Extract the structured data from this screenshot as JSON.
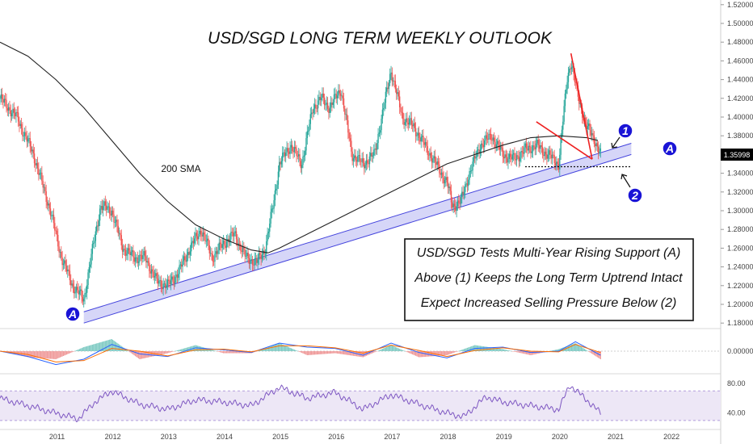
{
  "chart_data": {
    "type": "line",
    "title": "USD/SGD LONG TERM WEEKLY OUTLOOK",
    "price_label": "1.35998",
    "sma_label": "200 SMA",
    "annotation_lines": [
      "USD/SGD Tests Multi-Year Rising Support (A)",
      "Above (1) Keeps the Long Term Uptrend Intact",
      "Expect Increased Selling Pressure Below (2)"
    ],
    "markers": [
      "A",
      "A",
      "1",
      "2"
    ],
    "x_tick_labels": [
      "2011",
      "2012",
      "2013",
      "2014",
      "2015",
      "2016",
      "2017",
      "2018",
      "2019",
      "2020",
      "2021",
      "2022"
    ],
    "price_axis": {
      "ylim": [
        1.175,
        1.525
      ],
      "ticks": [
        "1.52000",
        "1.50000",
        "1.48000",
        "1.46000",
        "1.44000",
        "1.42000",
        "1.40000",
        "1.38000",
        "1.36000",
        "1.34000",
        "1.32000",
        "1.30000",
        "1.28000",
        "1.26000",
        "1.24000",
        "1.22000",
        "1.20000",
        "1.18000"
      ]
    },
    "macd_axis": {
      "ticks": [
        "0.00000"
      ]
    },
    "rsi_axis": {
      "ticks": [
        "80.00",
        "40.00"
      ],
      "band": [
        30,
        70
      ]
    },
    "price_series": {
      "name": "",
      "x": [
        2010.0,
        2010.3,
        2010.6,
        2010.9,
        2011.1,
        2011.3,
        2011.5,
        2011.6,
        2011.8,
        2012.0,
        2012.2,
        2012.4,
        2012.6,
        2012.8,
        2013.0,
        2013.2,
        2013.4,
        2013.6,
        2013.8,
        2014.0,
        2014.2,
        2014.4,
        2014.6,
        2014.75,
        2014.9,
        2015.0,
        2015.2,
        2015.4,
        2015.6,
        2015.75,
        2015.9,
        2016.1,
        2016.3,
        2016.5,
        2016.7,
        2016.9,
        2017.0,
        2017.2,
        2017.4,
        2017.6,
        2017.8,
        2018.0,
        2018.1,
        2018.25,
        2018.4,
        2018.6,
        2018.8,
        2019.0,
        2019.2,
        2019.4,
        2019.6,
        2019.8,
        2020.0,
        2020.15,
        2020.22,
        2020.35,
        2020.5,
        2020.65,
        2020.75
      ],
      "y": [
        1.42,
        1.4,
        1.36,
        1.3,
        1.25,
        1.22,
        1.205,
        1.24,
        1.305,
        1.3,
        1.26,
        1.25,
        1.25,
        1.225,
        1.22,
        1.235,
        1.26,
        1.28,
        1.25,
        1.265,
        1.275,
        1.25,
        1.245,
        1.26,
        1.31,
        1.35,
        1.37,
        1.35,
        1.41,
        1.42,
        1.41,
        1.43,
        1.36,
        1.35,
        1.36,
        1.42,
        1.45,
        1.4,
        1.39,
        1.37,
        1.35,
        1.33,
        1.305,
        1.31,
        1.34,
        1.37,
        1.38,
        1.36,
        1.355,
        1.365,
        1.37,
        1.36,
        1.35,
        1.44,
        1.46,
        1.42,
        1.39,
        1.375,
        1.36
      ]
    },
    "sma_series": {
      "name": "200 SMA",
      "x": [
        2010.0,
        2010.5,
        2011.0,
        2011.5,
        2012.0,
        2012.5,
        2013.0,
        2013.5,
        2014.0,
        2014.5,
        2014.8,
        2015.0,
        2015.5,
        2016.0,
        2016.5,
        2017.0,
        2017.5,
        2018.0,
        2018.5,
        2019.0,
        2019.5,
        2020.0,
        2020.5,
        2020.7
      ],
      "y": [
        1.48,
        1.465,
        1.44,
        1.41,
        1.375,
        1.34,
        1.31,
        1.285,
        1.27,
        1.258,
        1.255,
        1.26,
        1.275,
        1.29,
        1.305,
        1.32,
        1.335,
        1.35,
        1.36,
        1.37,
        1.378,
        1.38,
        1.378,
        1.375
      ]
    },
    "support_channel": {
      "start": [
        2011.5,
        1.18
      ],
      "end": [
        2021.3,
        1.36
      ],
      "width": 0.012
    },
    "downtrend_lines": [
      {
        "from": [
          2020.22,
          1.468
        ],
        "to": [
          2020.6,
          1.355
        ]
      },
      {
        "from": [
          2019.6,
          1.395
        ],
        "to": [
          2020.6,
          1.355
        ]
      }
    ],
    "support_level_2": {
      "y": 1.347,
      "from": 2019.4,
      "to": 2021.3
    },
    "macd": {
      "x": [
        2010.0,
        2010.5,
        2011.0,
        2011.5,
        2012.0,
        2012.5,
        2013.0,
        2013.5,
        2014.0,
        2014.5,
        2015.0,
        2015.5,
        2016.0,
        2016.5,
        2017.0,
        2017.5,
        2018.0,
        2018.5,
        2019.0,
        2019.5,
        2020.0,
        2020.3,
        2020.75
      ],
      "macd": [
        0.0,
        -0.008,
        -0.02,
        -0.012,
        0.01,
        -0.004,
        -0.008,
        0.005,
        0.002,
        -0.002,
        0.012,
        0.006,
        0.004,
        -0.006,
        0.012,
        -0.002,
        -0.01,
        0.004,
        0.006,
        -0.002,
        0.0,
        0.014,
        -0.006
      ],
      "signal": [
        0.0,
        -0.005,
        -0.016,
        -0.014,
        0.004,
        0.0,
        -0.007,
        0.002,
        0.003,
        -0.001,
        0.008,
        0.008,
        0.005,
        -0.003,
        0.009,
        0.001,
        -0.008,
        0.001,
        0.005,
        0.0,
        -0.001,
        0.01,
        -0.002
      ]
    },
    "rsi": {
      "x": [
        2010.0,
        2010.5,
        2011.0,
        2011.4,
        2011.7,
        2012.0,
        2012.5,
        2013.0,
        2013.5,
        2014.0,
        2014.5,
        2015.0,
        2015.5,
        2016.0,
        2016.5,
        2017.0,
        2017.5,
        2018.0,
        2018.3,
        2018.7,
        2019.0,
        2019.5,
        2020.0,
        2020.2,
        2020.5,
        2020.75
      ],
      "values": [
        60,
        50,
        40,
        32,
        55,
        70,
        52,
        45,
        58,
        55,
        50,
        75,
        60,
        68,
        45,
        65,
        52,
        40,
        35,
        62,
        55,
        50,
        45,
        78,
        58,
        40
      ]
    },
    "colors": {
      "up": "#26a69a",
      "down": "#ef5350",
      "sma": "#222222",
      "channel_fill": "#c8c8f5",
      "channel_edge": "#4444dd",
      "trendline": "#ee2222",
      "marker_fill": "#1a14d6",
      "macd_line": "#2962ff",
      "signal_line": "#ff6d00",
      "rsi_line": "#7e57c2",
      "rsi_band": "#ede7f6",
      "price_tag": "#000000"
    }
  }
}
